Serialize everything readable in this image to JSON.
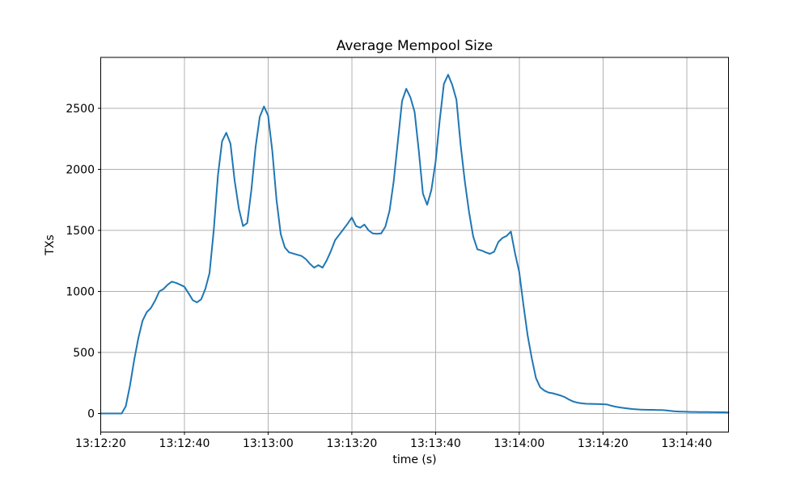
{
  "figure": {
    "background_color": "#ffffff"
  },
  "chart_data": {
    "type": "line",
    "title": "Average Mempool Size",
    "xlabel": "time (s)",
    "ylabel": "TXs",
    "grid": true,
    "legend": "none",
    "grid_color": "#b0b0b0",
    "x_axis": {
      "tick_labels": [
        "13:12:20",
        "13:12:40",
        "13:13:00",
        "13:13:20",
        "13:13:40",
        "13:14:00",
        "13:14:20",
        "13:14:40"
      ],
      "tick_seconds": [
        0,
        20,
        40,
        60,
        80,
        100,
        120,
        140
      ],
      "range_seconds": [
        0,
        150
      ],
      "start_time": "13:12:20",
      "end_time": "13:14:50"
    },
    "y_axis": {
      "tick_values": [
        0,
        500,
        1000,
        1500,
        2000,
        2500
      ],
      "range": [
        -152,
        2917
      ]
    },
    "series": [
      {
        "name": "average-mempool-size",
        "color": "#1f77b4",
        "points": [
          [
            0,
            0
          ],
          [
            1,
            0
          ],
          [
            2,
            0
          ],
          [
            3,
            0
          ],
          [
            4,
            0
          ],
          [
            5,
            0
          ],
          [
            6,
            60
          ],
          [
            7,
            230
          ],
          [
            8,
            440
          ],
          [
            9,
            620
          ],
          [
            10,
            760
          ],
          [
            11,
            830
          ],
          [
            12,
            865
          ],
          [
            13,
            925
          ],
          [
            14,
            1000
          ],
          [
            15,
            1020
          ],
          [
            16,
            1055
          ],
          [
            17,
            1080
          ],
          [
            18,
            1070
          ],
          [
            19,
            1055
          ],
          [
            20,
            1038
          ],
          [
            21,
            985
          ],
          [
            22,
            928
          ],
          [
            23,
            910
          ],
          [
            24,
            935
          ],
          [
            25,
            1020
          ],
          [
            26,
            1150
          ],
          [
            27,
            1500
          ],
          [
            28,
            1950
          ],
          [
            29,
            2230
          ],
          [
            30,
            2300
          ],
          [
            31,
            2210
          ],
          [
            32,
            1910
          ],
          [
            33,
            1680
          ],
          [
            34,
            1535
          ],
          [
            35,
            1560
          ],
          [
            36,
            1830
          ],
          [
            37,
            2180
          ],
          [
            38,
            2430
          ],
          [
            39,
            2515
          ],
          [
            40,
            2440
          ],
          [
            41,
            2150
          ],
          [
            42,
            1750
          ],
          [
            43,
            1470
          ],
          [
            44,
            1360
          ],
          [
            45,
            1320
          ],
          [
            46,
            1310
          ],
          [
            47,
            1300
          ],
          [
            48,
            1290
          ],
          [
            49,
            1265
          ],
          [
            50,
            1225
          ],
          [
            51,
            1195
          ],
          [
            52,
            1215
          ],
          [
            53,
            1195
          ],
          [
            54,
            1255
          ],
          [
            55,
            1330
          ],
          [
            56,
            1420
          ],
          [
            57,
            1465
          ],
          [
            58,
            1510
          ],
          [
            59,
            1555
          ],
          [
            60,
            1605
          ],
          [
            61,
            1535
          ],
          [
            62,
            1522
          ],
          [
            63,
            1548
          ],
          [
            64,
            1500
          ],
          [
            65,
            1475
          ],
          [
            66,
            1472
          ],
          [
            67,
            1475
          ],
          [
            68,
            1530
          ],
          [
            69,
            1660
          ],
          [
            70,
            1900
          ],
          [
            71,
            2230
          ],
          [
            72,
            2560
          ],
          [
            73,
            2660
          ],
          [
            74,
            2590
          ],
          [
            75,
            2470
          ],
          [
            76,
            2150
          ],
          [
            77,
            1800
          ],
          [
            78,
            1710
          ],
          [
            79,
            1830
          ],
          [
            80,
            2060
          ],
          [
            81,
            2400
          ],
          [
            82,
            2700
          ],
          [
            83,
            2775
          ],
          [
            84,
            2690
          ],
          [
            85,
            2570
          ],
          [
            86,
            2200
          ],
          [
            87,
            1900
          ],
          [
            88,
            1650
          ],
          [
            89,
            1450
          ],
          [
            90,
            1345
          ],
          [
            91,
            1335
          ],
          [
            92,
            1320
          ],
          [
            93,
            1308
          ],
          [
            94,
            1325
          ],
          [
            95,
            1405
          ],
          [
            96,
            1438
          ],
          [
            97,
            1455
          ],
          [
            98,
            1490
          ],
          [
            99,
            1310
          ],
          [
            100,
            1160
          ],
          [
            101,
            890
          ],
          [
            102,
            640
          ],
          [
            103,
            450
          ],
          [
            104,
            290
          ],
          [
            105,
            215
          ],
          [
            106,
            188
          ],
          [
            107,
            172
          ],
          [
            108,
            166
          ],
          [
            109,
            156
          ],
          [
            110,
            146
          ],
          [
            111,
            132
          ],
          [
            112,
            112
          ],
          [
            113,
            97
          ],
          [
            114,
            88
          ],
          [
            115,
            83
          ],
          [
            116,
            80
          ],
          [
            117,
            79
          ],
          [
            118,
            78
          ],
          [
            119,
            77
          ],
          [
            120,
            76
          ],
          [
            121,
            74
          ],
          [
            122,
            64
          ],
          [
            123,
            56
          ],
          [
            124,
            50
          ],
          [
            125,
            45
          ],
          [
            126,
            41
          ],
          [
            127,
            37
          ],
          [
            128,
            34
          ],
          [
            129,
            32
          ],
          [
            130,
            31
          ],
          [
            131,
            30
          ],
          [
            132,
            30
          ],
          [
            133,
            29
          ],
          [
            134,
            28
          ],
          [
            135,
            26
          ],
          [
            136,
            22
          ],
          [
            137,
            18
          ],
          [
            138,
            16
          ],
          [
            139,
            15
          ],
          [
            140,
            14
          ],
          [
            141,
            13
          ],
          [
            142,
            13
          ],
          [
            143,
            12
          ],
          [
            144,
            12
          ],
          [
            145,
            12
          ],
          [
            146,
            11
          ],
          [
            147,
            11
          ],
          [
            148,
            10
          ],
          [
            149,
            10
          ],
          [
            150,
            9
          ]
        ]
      }
    ]
  }
}
